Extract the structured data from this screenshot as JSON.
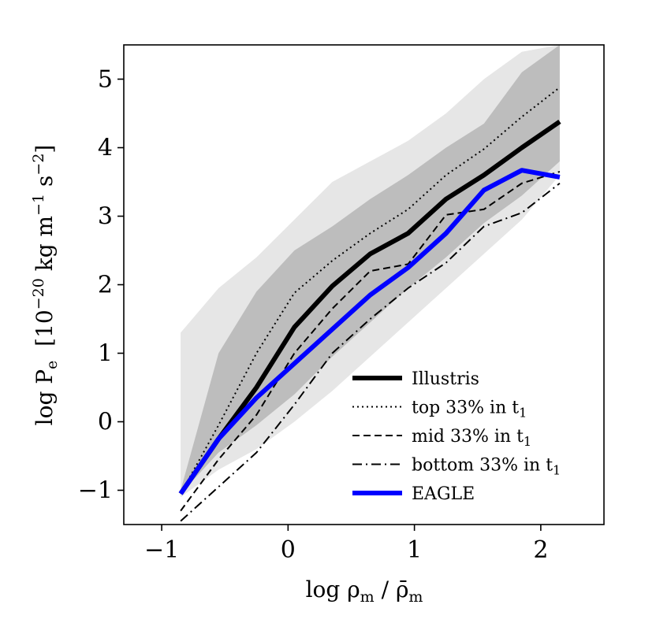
{
  "chart_data": {
    "type": "line",
    "xlabel": {
      "main": "log ρ",
      "sub1": "m",
      "mid": " / ρ̄",
      "sub2": "m"
    },
    "ylabel": {
      "main": "log P",
      "sub1": "e",
      "unit_pre": "[10",
      "exp1": "−20",
      "unit_mid": " kg m",
      "exp2": "−1",
      "unit_s": " s",
      "exp3": "−2",
      "unit_post": "]"
    },
    "xlim": [
      -1.3,
      2.5
    ],
    "ylim": [
      -1.5,
      5.5
    ],
    "xticks": [
      {
        "value": -1,
        "label": "−1"
      },
      {
        "value": 0,
        "label": "0"
      },
      {
        "value": 1,
        "label": "1"
      },
      {
        "value": 2,
        "label": "2"
      }
    ],
    "yticks": [
      {
        "value": -1,
        "label": "−1"
      },
      {
        "value": 0,
        "label": "0"
      },
      {
        "value": 1,
        "label": "1"
      },
      {
        "value": 2,
        "label": "2"
      },
      {
        "value": 3,
        "label": "3"
      },
      {
        "value": 4,
        "label": "4"
      },
      {
        "value": 5,
        "label": "5"
      }
    ],
    "x": [
      -0.85,
      -0.55,
      -0.25,
      0.05,
      0.35,
      0.65,
      0.95,
      1.25,
      1.55,
      1.85,
      2.15
    ],
    "bands": [
      {
        "name": "outer-band",
        "color": "#e6e6e6",
        "lower": [
          -1.1,
          -0.7,
          -0.4,
          0.0,
          0.45,
          0.95,
          1.45,
          1.95,
          2.45,
          2.95,
          3.6
        ],
        "upper": [
          1.3,
          1.95,
          2.4,
          2.95,
          3.5,
          3.8,
          4.1,
          4.5,
          5.0,
          5.4,
          5.5
        ]
      },
      {
        "name": "inner-band",
        "color": "#bdbdbd",
        "lower": [
          -1.05,
          -0.45,
          -0.05,
          0.4,
          0.95,
          1.45,
          1.95,
          2.4,
          2.9,
          3.3,
          3.8
        ],
        "upper": [
          -1.0,
          1.0,
          1.9,
          2.5,
          2.85,
          3.25,
          3.6,
          4.0,
          4.35,
          5.1,
          5.5
        ]
      }
    ],
    "series": [
      {
        "name": "Illustris",
        "color": "#000000",
        "width": 6,
        "dash": "",
        "values": [
          -1.05,
          -0.25,
          0.5,
          1.38,
          1.98,
          2.45,
          2.75,
          3.25,
          3.6,
          4.0,
          4.38
        ]
      },
      {
        "name": "top 33% in t",
        "sub": "1",
        "color": "#000000",
        "width": 2,
        "dash": "2,4",
        "values": [
          -1.05,
          -0.05,
          1.0,
          1.88,
          2.35,
          2.75,
          3.1,
          3.6,
          3.98,
          4.45,
          4.88
        ]
      },
      {
        "name": "mid 33% in t",
        "sub": "1",
        "color": "#000000",
        "width": 2,
        "dash": "9,5",
        "values": [
          -1.3,
          -0.55,
          0.1,
          1.0,
          1.65,
          2.2,
          2.3,
          3.02,
          3.1,
          3.48,
          3.65
        ]
      },
      {
        "name": "bottom 33% in t",
        "sub": "1",
        "color": "#000000",
        "width": 2,
        "dash": "12,5,2,5",
        "values": [
          -1.45,
          -0.95,
          -0.45,
          0.25,
          1.0,
          1.5,
          1.95,
          2.32,
          2.85,
          3.05,
          3.48
        ]
      },
      {
        "name": "EAGLE",
        "color": "#0000ff",
        "width": 6,
        "dash": "",
        "values": [
          -1.05,
          -0.25,
          0.35,
          0.85,
          1.35,
          1.85,
          2.25,
          2.75,
          3.38,
          3.67,
          3.57
        ]
      }
    ],
    "legend_position": "lower-right"
  }
}
